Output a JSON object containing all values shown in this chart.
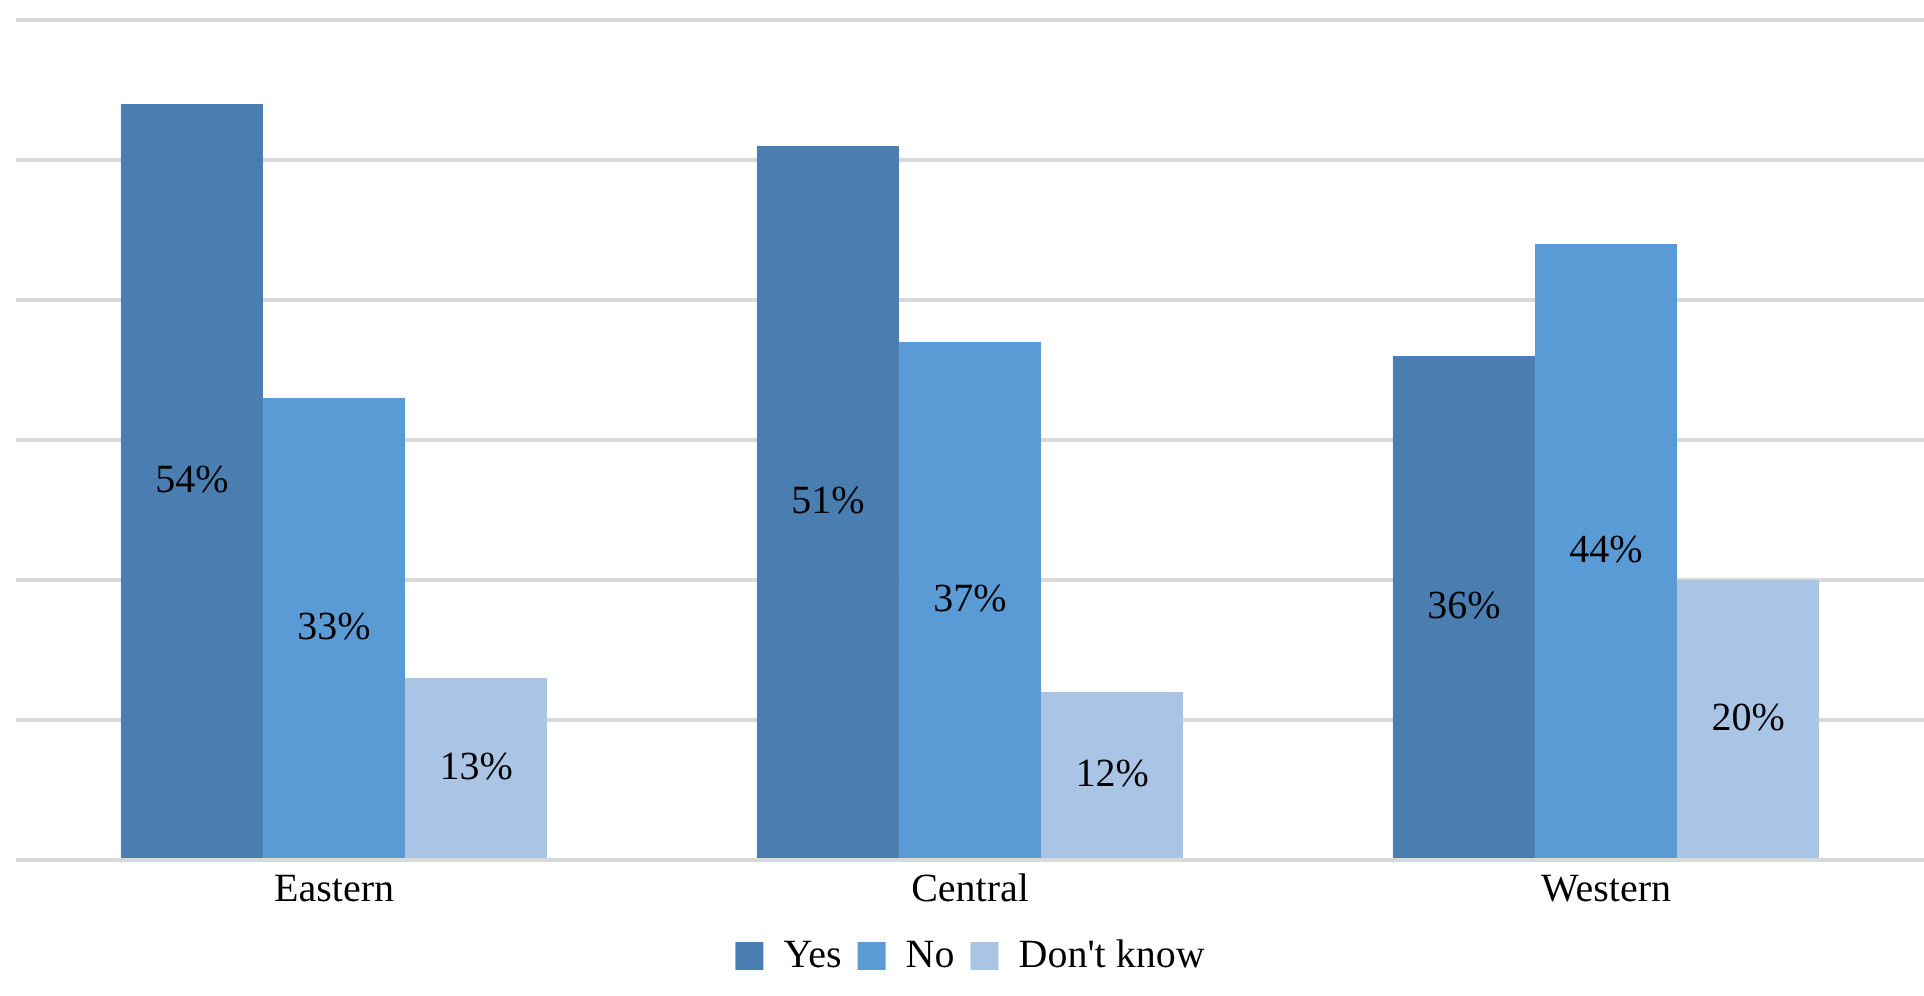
{
  "chart_data": {
    "type": "bar",
    "categories": [
      "Eastern",
      "Central",
      "Western"
    ],
    "series": [
      {
        "name": "Yes",
        "color": "#4a7eb0",
        "values": [
          54,
          51,
          36
        ],
        "value_labels": [
          "54%",
          "51%",
          "36%"
        ]
      },
      {
        "name": "No",
        "color": "#5b9bd5",
        "values": [
          33,
          37,
          44
        ],
        "value_labels": [
          "33%",
          "37%",
          "44%"
        ]
      },
      {
        "name": "Don't know",
        "color": "#a9c4e4",
        "values": [
          13,
          12,
          20
        ],
        "value_labels": [
          "13%",
          "12%",
          "20%"
        ]
      }
    ],
    "ylim": [
      0,
      60
    ],
    "yticks": [
      {
        "value": 0,
        "label": null
      },
      {
        "value": 10,
        "label": null
      },
      {
        "value": 20,
        "label": null
      },
      {
        "value": 30,
        "label": null
      },
      {
        "value": 40,
        "label": null
      },
      {
        "value": 50,
        "label": null
      },
      {
        "value": 60,
        "label": null
      }
    ],
    "tick_labels": "x",
    "grid": "y",
    "legend": "bottom"
  }
}
